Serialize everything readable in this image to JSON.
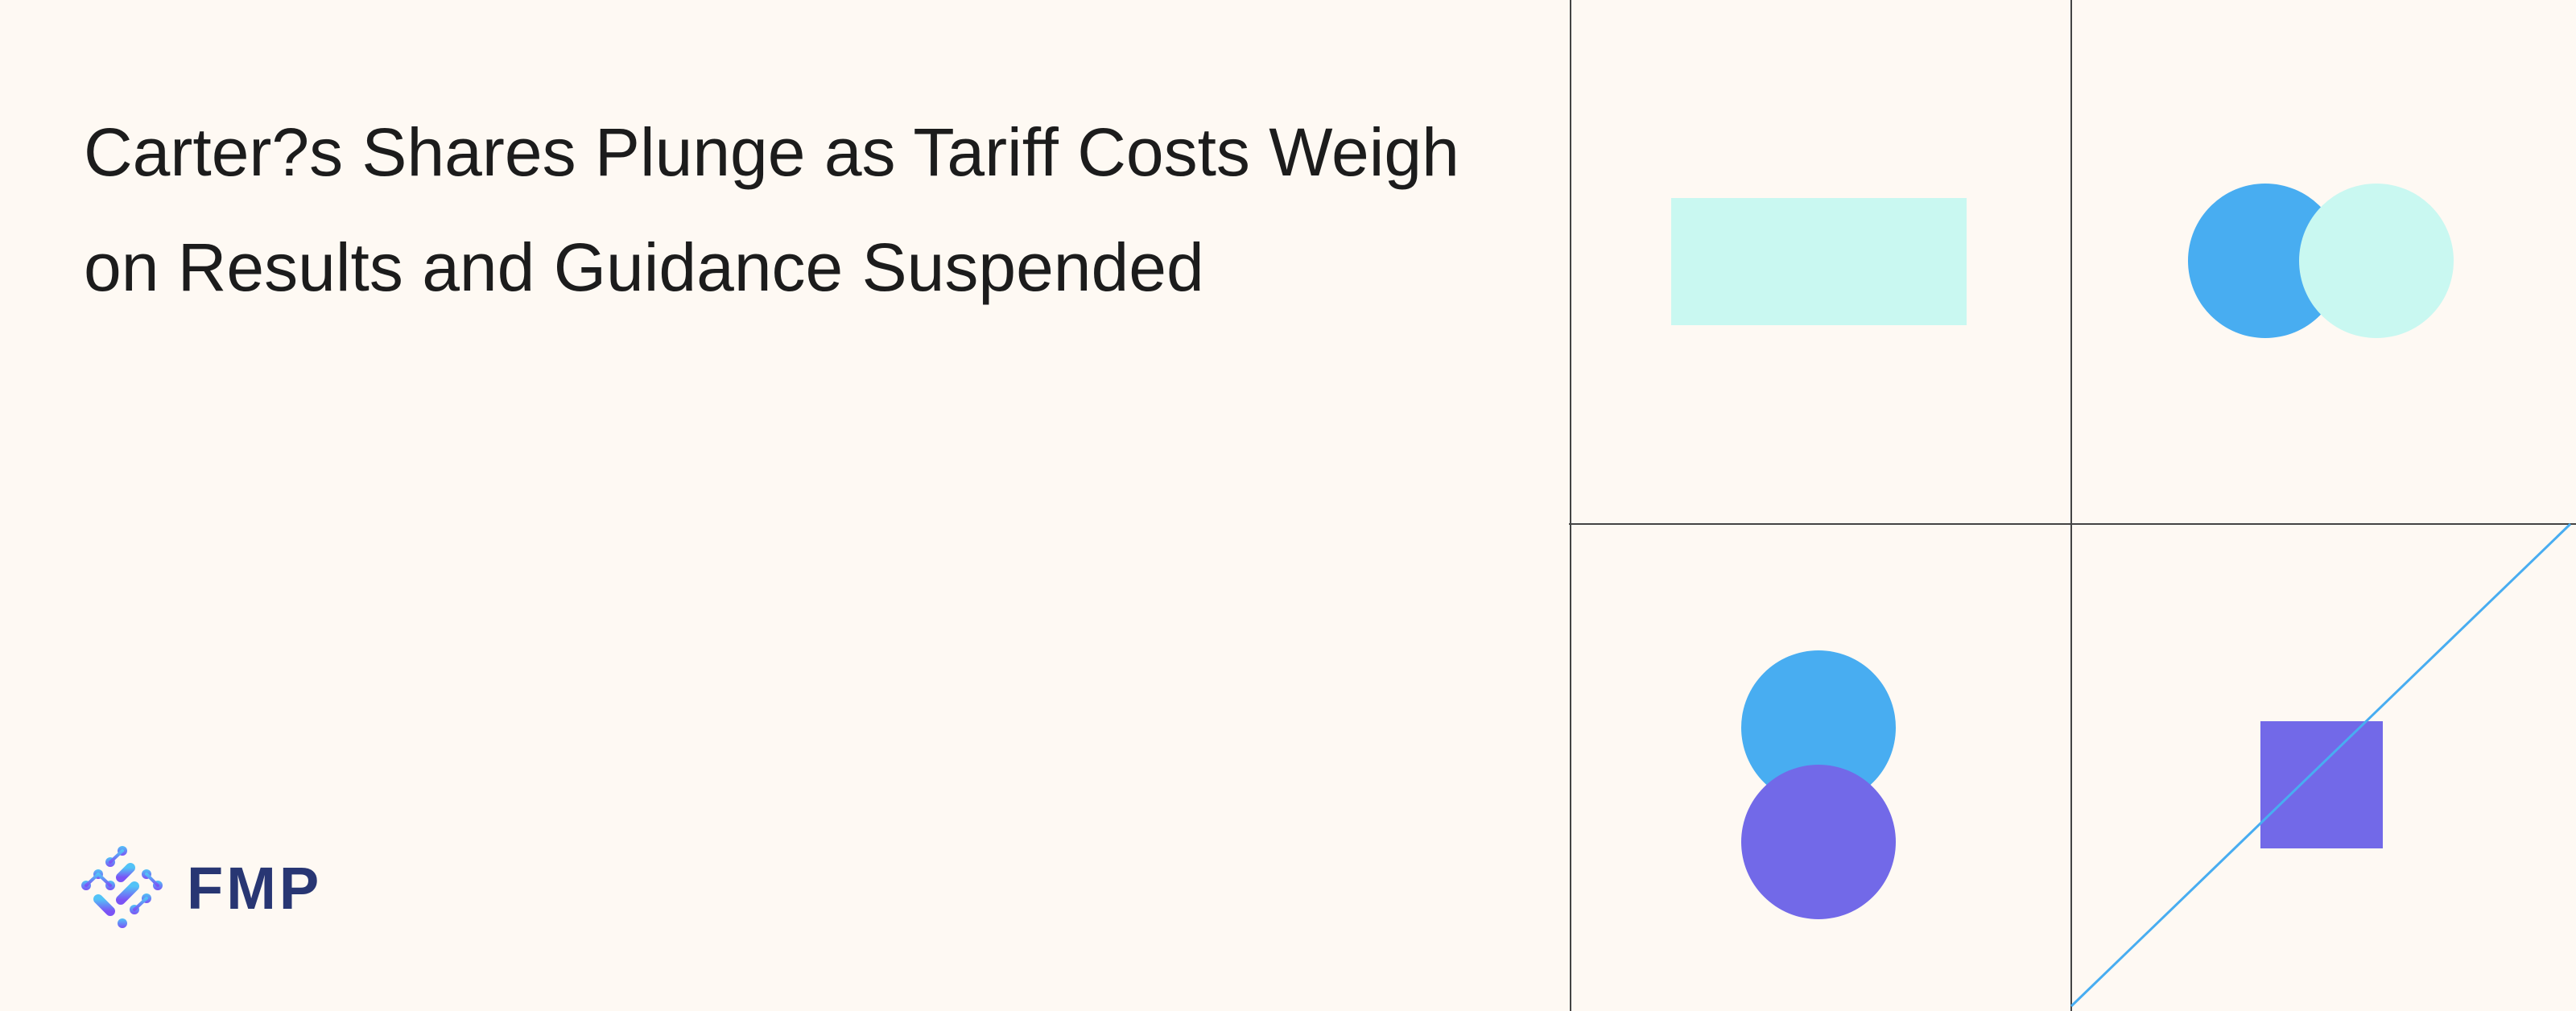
{
  "article": {
    "title": "Carter?s Shares Plunge as Tariff Costs Weigh on Results and Guidance Suspended"
  },
  "brand": {
    "name": "FMP",
    "text_color": "#283673",
    "logo_gradient": [
      "#52c3f7",
      "#7b53f5"
    ]
  },
  "colors": {
    "background": "#fef9f3",
    "grid_line": "#444444",
    "blue": "#48adf1",
    "mint": "#c9f8f1",
    "purple": "#7269e8"
  }
}
